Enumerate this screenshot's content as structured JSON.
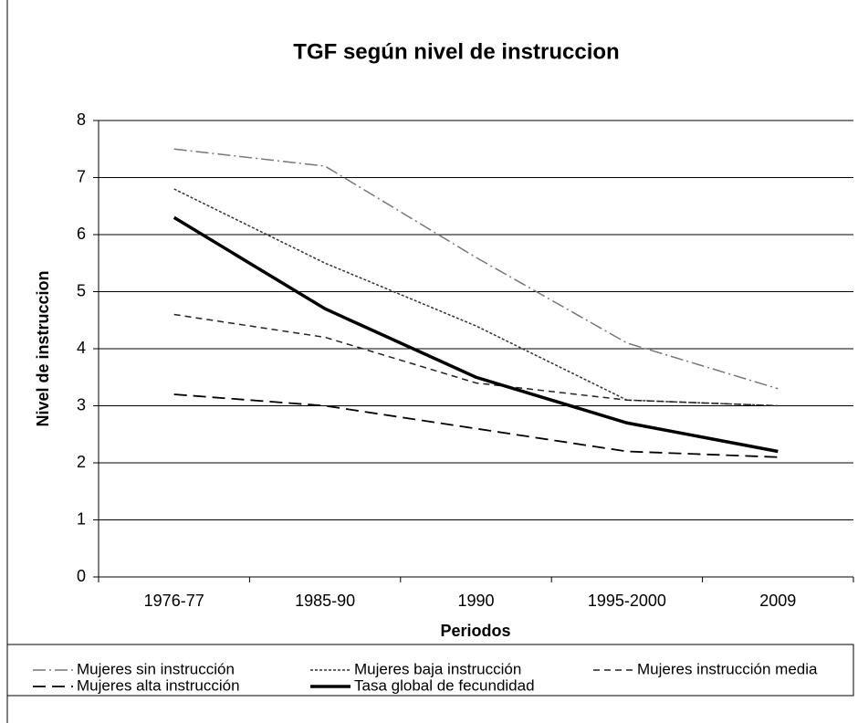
{
  "chart_data": {
    "type": "line",
    "title": "TGF según nivel de instruccion",
    "x_label": "Periodos",
    "y_label": "Nivel de instruccion",
    "categories": [
      "1976-77",
      "1985-90",
      "1990",
      "1995-2000",
      "2009"
    ],
    "series": [
      {
        "name": "Mujeres sin instrucción",
        "color": "#777777",
        "dash": "14 4 2 4",
        "width": 1.5,
        "values": [
          7.5,
          7.2,
          5.6,
          4.1,
          3.3
        ]
      },
      {
        "name": "Mujeres baja instrucción",
        "color": "#333333",
        "dash": "3 2",
        "width": 1.5,
        "values": [
          6.8,
          5.5,
          4.4,
          3.1,
          3.0
        ]
      },
      {
        "name": "Mujeres instrucción media",
        "color": "#222222",
        "dash": "7 5",
        "width": 1.5,
        "values": [
          4.6,
          4.2,
          3.4,
          3.1,
          3.0
        ]
      },
      {
        "name": "Mujeres alta instrucción",
        "color": "#000000",
        "dash": "14 7",
        "width": 1.8,
        "values": [
          3.2,
          3.0,
          2.6,
          2.2,
          2.1
        ]
      },
      {
        "name": "Tasa global de fecundidad",
        "color": "#000000",
        "dash": "none",
        "width": 3.5,
        "values": [
          6.3,
          4.7,
          3.5,
          2.7,
          2.2
        ]
      }
    ],
    "ylim": [
      0,
      8
    ],
    "yticks": [
      0,
      1,
      2,
      3,
      4,
      5,
      6,
      7,
      8
    ],
    "grid": true,
    "legend": "bottom"
  }
}
